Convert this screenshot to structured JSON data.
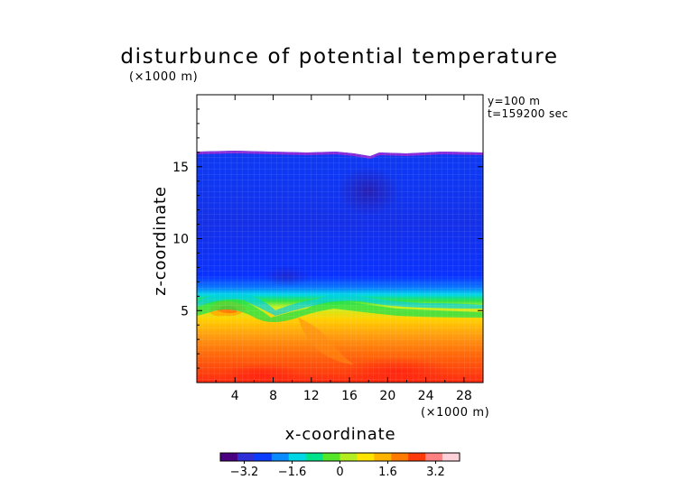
{
  "chart_data": {
    "type": "heatmap",
    "title": "disturbunce of potential temperature",
    "xlabel": "x-coordinate",
    "ylabel": "z-coordinate",
    "xunit": "(×1000 m)",
    "yunit": "(×1000 m)",
    "annotations": [
      "y=100 m",
      "t=159200 sec"
    ],
    "xlim": [
      0,
      30
    ],
    "ylim": [
      0,
      20
    ],
    "xticks": [
      4,
      8,
      12,
      16,
      20,
      24,
      28
    ],
    "yticks": [
      5,
      10,
      15
    ],
    "colorbar": {
      "ticks": [
        -3.2,
        -1.6,
        0,
        1.6,
        3.2
      ],
      "tick_labels": [
        "−3.2",
        "−1.6",
        "0",
        "1.6",
        "3.2"
      ],
      "range": [
        -4.0,
        4.0
      ],
      "colors": [
        "#4b0082",
        "#2f2fd8",
        "#0a3cff",
        "#0a8cff",
        "#00d7e6",
        "#00e28a",
        "#55e62a",
        "#b4ee20",
        "#ffe400",
        "#ffb400",
        "#ff7a00",
        "#ff3a0a",
        "#ff8080",
        "#ffd0d8"
      ]
    },
    "field_summary": {
      "data_top_z": 16.0,
      "cold_layer_z": [
        6.3,
        16.0
      ],
      "cold_layer_value": -2.8,
      "transition_z": [
        4.5,
        6.3
      ],
      "warm_layer_z": [
        0,
        4.5
      ],
      "surface_value": 3.0,
      "coldest_core": {
        "x": 18,
        "z": 13.5,
        "value": -3.3
      }
    }
  }
}
